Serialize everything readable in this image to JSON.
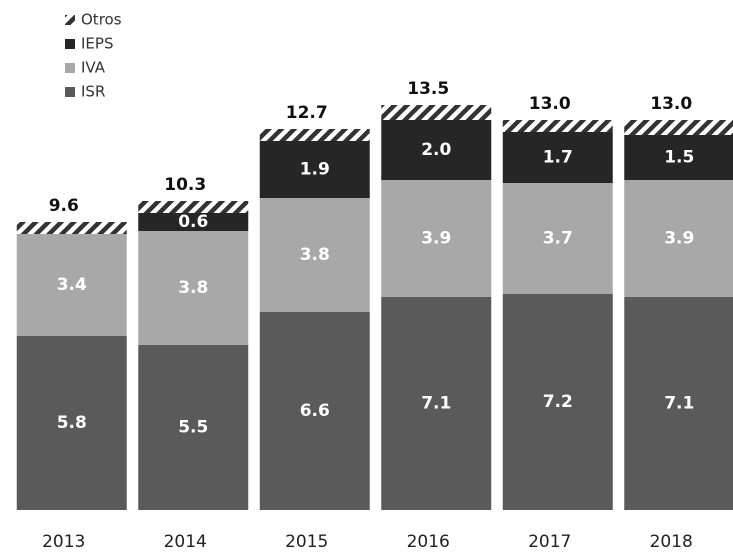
{
  "chart_data": {
    "type": "stacked_bar",
    "categories": [
      "2013",
      "2014",
      "2015",
      "2016",
      "2017",
      "2018"
    ],
    "series": [
      {
        "name": "ISR",
        "color": "#5a5a5a",
        "values": [
          5.8,
          5.5,
          6.6,
          7.1,
          7.2,
          7.1
        ]
      },
      {
        "name": "IVA",
        "color": "#a8a8a8",
        "values": [
          3.4,
          3.8,
          3.8,
          3.9,
          3.7,
          3.9
        ]
      },
      {
        "name": "IEPS",
        "color": "#262626",
        "values": [
          null,
          0.6,
          1.9,
          2.0,
          1.7,
          1.5
        ],
        "value_labels": [
          null,
          "0.6",
          "1.9",
          "2.0",
          "1.7",
          "1.5"
        ]
      },
      {
        "name": "Otros",
        "color": "#333333",
        "pattern": "hatch",
        "values": [
          0.4,
          0.4,
          0.4,
          0.5,
          0.4,
          0.5
        ]
      }
    ],
    "totals": {
      "values": [
        9.6,
        10.3,
        12.7,
        13.5,
        13.0,
        13.0
      ],
      "value_labels": [
        "9.6",
        "10.3",
        "12.7",
        "13.5",
        "13.0",
        "13.0"
      ]
    },
    "ylim": [
      0,
      14
    ]
  }
}
